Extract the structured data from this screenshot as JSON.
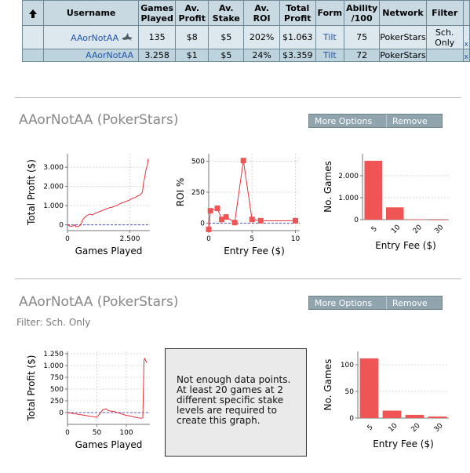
{
  "table": {
    "headers": [
      "",
      "Username",
      "Games Played",
      "Av. Profit",
      "Av. Stake",
      "Av. ROI",
      "Total Profit",
      "Form",
      "Ability /100",
      "Network",
      "Filter",
      ""
    ],
    "rows": [
      {
        "username": "AAorNotAA",
        "games": "135",
        "av_profit": "$8",
        "av_stake": "$5",
        "av_roi": "202%",
        "total_profit": "$1.063",
        "form": "Tilt",
        "ability": "75",
        "network": "PokerStars",
        "filter": "Sch. Only",
        "delete": "x"
      },
      {
        "username": "AAorNotAA",
        "games": "3.258",
        "av_profit": "$1",
        "av_stake": "$5",
        "av_roi": "24%",
        "total_profit": "$3.359",
        "form": "Tilt",
        "ability": "72",
        "network": "PokerStars",
        "filter": "",
        "delete": "x"
      }
    ]
  },
  "sections": [
    {
      "title": "AAorNotAA (PokerStars)",
      "filter": "",
      "more_options_label": "More Options",
      "remove_label": "Remove",
      "charts": [
        {
          "type": "line",
          "xlabel": "Games Played",
          "ylabel": "Total Profit ($)",
          "xlim": [
            0,
            3300
          ],
          "ylim": [
            -300,
            3700
          ],
          "xticks": [
            0,
            2500
          ],
          "xtick_labels": [
            "0",
            "2.500"
          ],
          "yticks": [
            0,
            1000,
            2000,
            3000
          ],
          "ytick_labels": [
            "0",
            "1.000",
            "2.000",
            "3.000"
          ],
          "x": [
            0,
            60,
            120,
            200,
            280,
            300,
            340,
            420,
            500,
            560,
            600,
            700,
            800,
            900,
            1000,
            1100,
            1200,
            1300,
            1400,
            1500,
            1600,
            1700,
            1800,
            1900,
            2000,
            2100,
            2200,
            2300,
            2400,
            2500,
            2600,
            2700,
            2800,
            2900,
            2950,
            3000,
            3050,
            3100,
            3150,
            3200,
            3230,
            3258
          ],
          "y": [
            0,
            -30,
            -80,
            -60,
            -40,
            0,
            -100,
            -80,
            -40,
            100,
            250,
            400,
            500,
            560,
            520,
            600,
            650,
            700,
            750,
            800,
            850,
            900,
            920,
            980,
            1020,
            1100,
            1150,
            1200,
            1250,
            1300,
            1380,
            1420,
            1500,
            1550,
            1620,
            1700,
            2200,
            2500,
            2900,
            3100,
            3400,
            3359
          ]
        },
        {
          "type": "line+scatter",
          "xlabel": "Entry Fee ($)",
          "ylabel": "ROI %",
          "xlim": [
            0,
            10.5
          ],
          "ylim": [
            -60,
            560
          ],
          "xticks": [
            0,
            5,
            10
          ],
          "xtick_labels": [
            "0",
            "5",
            "10"
          ],
          "yticks": [
            0,
            250,
            500
          ],
          "ytick_labels": [
            "0",
            "250",
            "500"
          ],
          "x": [
            0,
            0.2,
            1,
            1.5,
            2,
            3,
            4,
            5,
            6,
            10
          ],
          "y": [
            -50,
            100,
            120,
            30,
            50,
            5,
            505,
            30,
            20,
            20
          ]
        },
        {
          "type": "bar",
          "xlabel": "Entry Fee ($)",
          "ylabel": "No. Games",
          "ylim": [
            0,
            3000
          ],
          "categories": [
            "5",
            "10",
            "20",
            "30"
          ],
          "values": [
            2680,
            560,
            15,
            3
          ],
          "yticks": [
            0,
            1000,
            2000
          ],
          "ytick_labels": [
            "0",
            "1.000",
            "2.000"
          ]
        }
      ]
    },
    {
      "title": "AAorNotAA (PokerStars)",
      "filter": "Filter: Sch. Only",
      "more_options_label": "More Options",
      "remove_label": "Remove",
      "notice": "Not enough data points. At least 20 games at 2 different specific stake levels are required to create this graph.",
      "charts": [
        {
          "type": "line",
          "xlabel": "Games Played",
          "ylabel": "Total Profit ($)",
          "xlim": [
            0,
            140
          ],
          "ylim": [
            -250,
            1300
          ],
          "xticks": [
            0,
            50,
            100
          ],
          "xtick_labels": [
            "0",
            "50",
            "100"
          ],
          "yticks": [
            0,
            250,
            500,
            750,
            1000,
            1250
          ],
          "ytick_labels": [
            "0",
            "250",
            "500",
            "750",
            "1.000",
            "1.250"
          ],
          "x": [
            0,
            10,
            20,
            30,
            40,
            50,
            55,
            60,
            65,
            70,
            80,
            90,
            100,
            110,
            115,
            120,
            125,
            128,
            130,
            131,
            132,
            134,
            135
          ],
          "y": [
            0,
            -20,
            -40,
            -60,
            -80,
            -100,
            -20,
            60,
            80,
            40,
            20,
            -20,
            -60,
            -80,
            -100,
            -110,
            -120,
            -110,
            1100,
            1150,
            1130,
            1080,
            1063
          ]
        },
        {
          "type": "bar",
          "xlabel": "Entry Fee ($)",
          "ylabel": "No. Games",
          "ylim": [
            0,
            125
          ],
          "categories": [
            "5",
            "10",
            "20",
            "30"
          ],
          "values": [
            112,
            14,
            6,
            3
          ],
          "yticks": [
            0,
            50,
            100
          ],
          "ytick_labels": [
            "0",
            "50",
            "100"
          ]
        }
      ]
    }
  ],
  "colors": {
    "line": "#e8303a",
    "bar": "#f05555",
    "grid": "#d8d8d8",
    "zero_line": "#5a5ab8",
    "header_bg": "#c9d9e1",
    "button_bg": "#8fa4ad"
  }
}
